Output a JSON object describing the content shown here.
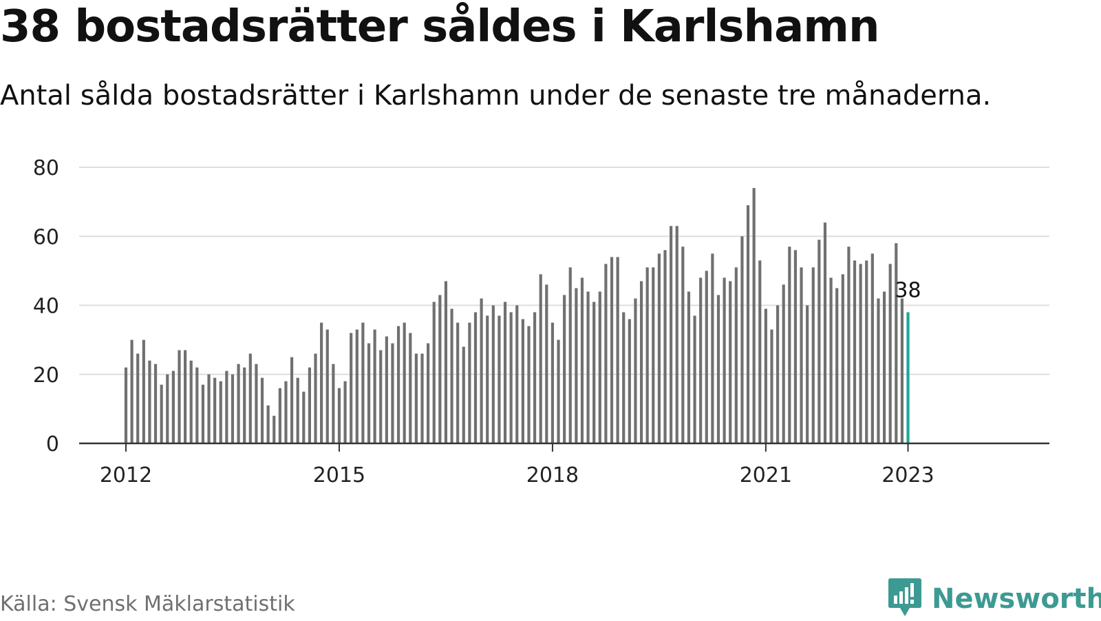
{
  "title": "38 bostadsrätter såldes i Karlshamn",
  "subtitle": "Antal sålda bostadsrätter i Karlshamn under de senaste tre månaderna.",
  "source": "Källa: Svensk Mäklarstatistik",
  "brand": {
    "name": "Newsworthy",
    "icon": "newsworthy-logo-icon"
  },
  "colors": {
    "bar": "#707070",
    "highlight": "#1ea699",
    "grid": "#dddddd",
    "axis": "#333333",
    "brand": "#3d9a92"
  },
  "chart_data": {
    "type": "bar",
    "title": "38 bostadsrätter såldes i Karlshamn",
    "subtitle": "Antal sålda bostadsrätter i Karlshamn under de senaste tre månaderna.",
    "xlabel": "",
    "ylabel": "",
    "ylim": [
      0,
      80
    ],
    "yticks": [
      0,
      20,
      40,
      60,
      80
    ],
    "xticks": [
      "2012",
      "2015",
      "2018",
      "2021",
      "2023"
    ],
    "x_start": "2012-01",
    "x_interval": "month",
    "grid": true,
    "highlight_label": "38",
    "values": [
      22,
      30,
      26,
      30,
      24,
      23,
      17,
      20,
      21,
      27,
      27,
      24,
      22,
      17,
      20,
      19,
      18,
      21,
      20,
      23,
      22,
      26,
      23,
      19,
      11,
      8,
      16,
      18,
      25,
      19,
      15,
      22,
      26,
      35,
      33,
      23,
      16,
      18,
      32,
      33,
      35,
      29,
      33,
      27,
      31,
      29,
      34,
      35,
      32,
      26,
      26,
      29,
      41,
      43,
      47,
      39,
      35,
      28,
      35,
      38,
      42,
      37,
      40,
      37,
      41,
      38,
      40,
      36,
      34,
      38,
      49,
      46,
      35,
      30,
      43,
      51,
      45,
      48,
      44,
      41,
      44,
      52,
      54,
      54,
      38,
      36,
      42,
      47,
      51,
      51,
      55,
      56,
      63,
      63,
      57,
      44,
      37,
      48,
      50,
      55,
      43,
      48,
      47,
      51,
      60,
      69,
      74,
      53,
      39,
      33,
      40,
      46,
      57,
      56,
      51,
      40,
      51,
      59,
      64,
      48,
      45,
      49,
      57,
      53,
      52,
      53,
      55,
      42,
      44,
      52,
      58,
      42,
      38
    ]
  }
}
